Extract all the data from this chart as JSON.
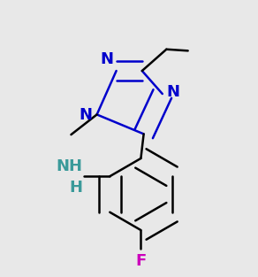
{
  "bg_color": "#e8e8e8",
  "bond_color": "#000000",
  "nitrogen_color": "#0000cc",
  "fluorine_color": "#cc00bb",
  "nh_color": "#3a9a9a",
  "line_width": 1.8,
  "font_size": 13,
  "font_size_sub": 10
}
